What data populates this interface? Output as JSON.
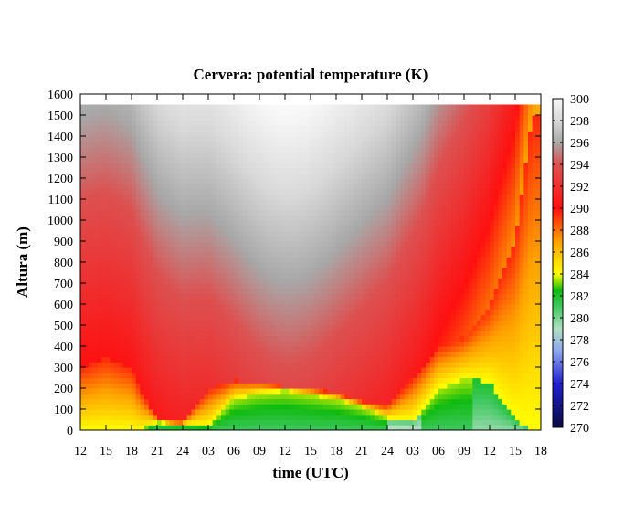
{
  "chart_data": {
    "type": "heatmap",
    "title": "Cervera: potential temperature (K)",
    "xlabel": "time (UTC)",
    "ylabel": "Altura (m)",
    "x_tick_labels": [
      "12",
      "15",
      "18",
      "21",
      "24",
      "03",
      "06",
      "09",
      "12",
      "15",
      "18",
      "21",
      "24",
      "03",
      "06",
      "09",
      "12",
      "15",
      "18"
    ],
    "x_range_hours": [
      0,
      54
    ],
    "y_ticks": [
      0,
      100,
      200,
      300,
      400,
      500,
      600,
      700,
      800,
      900,
      1000,
      1100,
      1200,
      1300,
      1400,
      1500,
      1600
    ],
    "ylim": [
      0,
      1600
    ],
    "data_top_m": 1550,
    "colorbar": {
      "ticks": [
        270,
        272,
        274,
        276,
        278,
        280,
        282,
        284,
        286,
        288,
        290,
        292,
        294,
        296,
        298,
        300
      ],
      "range": [
        270,
        300
      ],
      "colors": [
        {
          "value": 270,
          "color": "#0a0a40"
        },
        {
          "value": 274,
          "color": "#2020d0"
        },
        {
          "value": 277,
          "color": "#90a8ee"
        },
        {
          "value": 279,
          "color": "#b0e0c0"
        },
        {
          "value": 281,
          "color": "#40c860"
        },
        {
          "value": 282.5,
          "color": "#10bb10"
        },
        {
          "value": 284,
          "color": "#ffff00"
        },
        {
          "value": 287,
          "color": "#ffa000"
        },
        {
          "value": 290,
          "color": "#ff1010"
        },
        {
          "value": 294,
          "color": "#dd5050"
        },
        {
          "value": 296,
          "color": "#a8a8a8"
        },
        {
          "value": 298,
          "color": "#d8d8d8"
        },
        {
          "value": 300,
          "color": "#f8f8f8"
        }
      ]
    },
    "boundary_layer_height_m": {
      "hours": [
        0,
        3,
        6,
        7,
        9,
        10,
        12,
        15,
        18,
        21,
        24,
        27,
        30,
        33,
        36,
        39,
        42,
        45,
        48,
        51,
        53
      ],
      "values": [
        300,
        350,
        300,
        200,
        60,
        40,
        40,
        200,
        240,
        230,
        210,
        200,
        180,
        140,
        120,
        250,
        400,
        450,
        600,
        900,
        1500
      ]
    },
    "stable_layer_top_m": {
      "hours": [
        0,
        3,
        6,
        7,
        9,
        12,
        15,
        18,
        21,
        24,
        27,
        30,
        33,
        36,
        39,
        42,
        45,
        48,
        51,
        53
      ],
      "values": [
        0,
        0,
        0,
        0,
        40,
        30,
        20,
        150,
        180,
        190,
        170,
        150,
        110,
        60,
        50,
        200,
        250,
        230,
        60,
        0
      ]
    }
  }
}
